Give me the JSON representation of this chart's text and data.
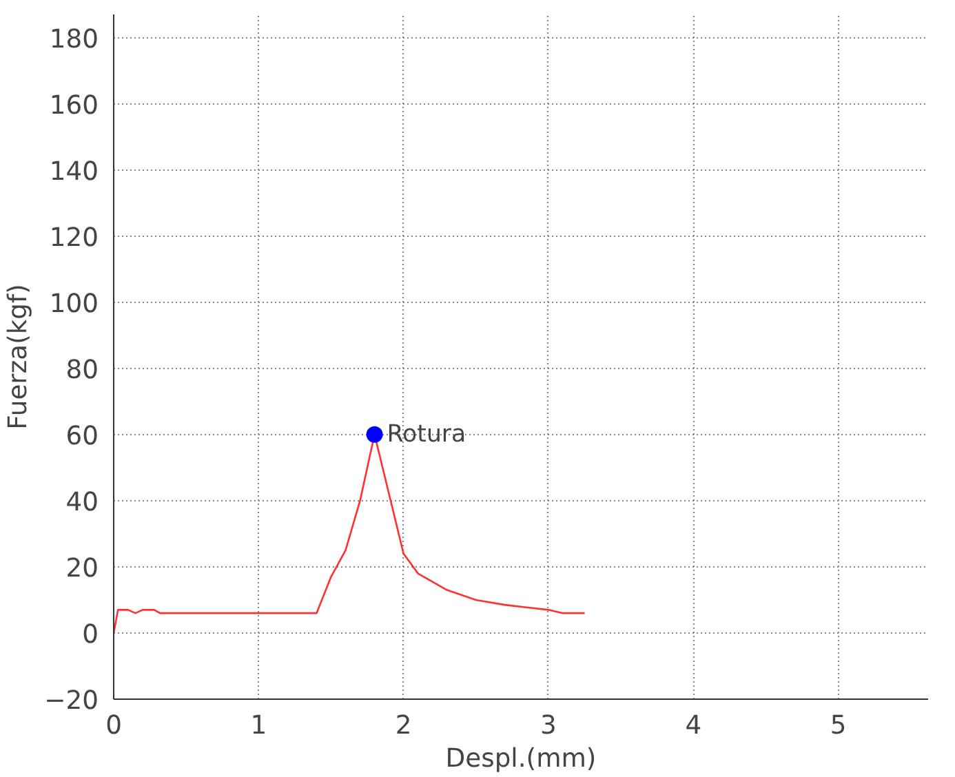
{
  "chart_data": {
    "type": "line",
    "xlabel": "Despl.(mm)",
    "ylabel": "Fuerza(kgf)",
    "xlim": [
      0,
      5.62
    ],
    "xticks": [
      0,
      1,
      2,
      3,
      4,
      5
    ],
    "ylim": [
      -20,
      187
    ],
    "yticks": [
      -20,
      0,
      20,
      40,
      60,
      80,
      100,
      120,
      140,
      160,
      180
    ],
    "grid": true,
    "marker": "none",
    "line_style": "solid",
    "series": [
      {
        "color": "#ff3030",
        "x": [
          0,
          0.03,
          0.1,
          0.15,
          0.2,
          0.28,
          0.32,
          0.8,
          1.4,
          1.5,
          1.6,
          1.7,
          1.8,
          1.9,
          2.0,
          2.1,
          2.3,
          2.5,
          2.7,
          3.0,
          3.1,
          3.25
        ],
        "values": [
          0,
          7,
          7,
          6,
          7,
          7,
          6,
          6,
          6,
          17,
          25,
          40,
          60,
          42,
          24,
          18,
          13,
          10,
          8.5,
          7,
          6,
          6
        ]
      },
      {
        "type": "scatter",
        "color": "#0000ff",
        "marker": "circle",
        "x": [
          1.8
        ],
        "values": [
          60
        ]
      }
    ],
    "annotations": [
      {
        "text": "Rotura",
        "x": 1.8,
        "y": 60
      }
    ]
  }
}
